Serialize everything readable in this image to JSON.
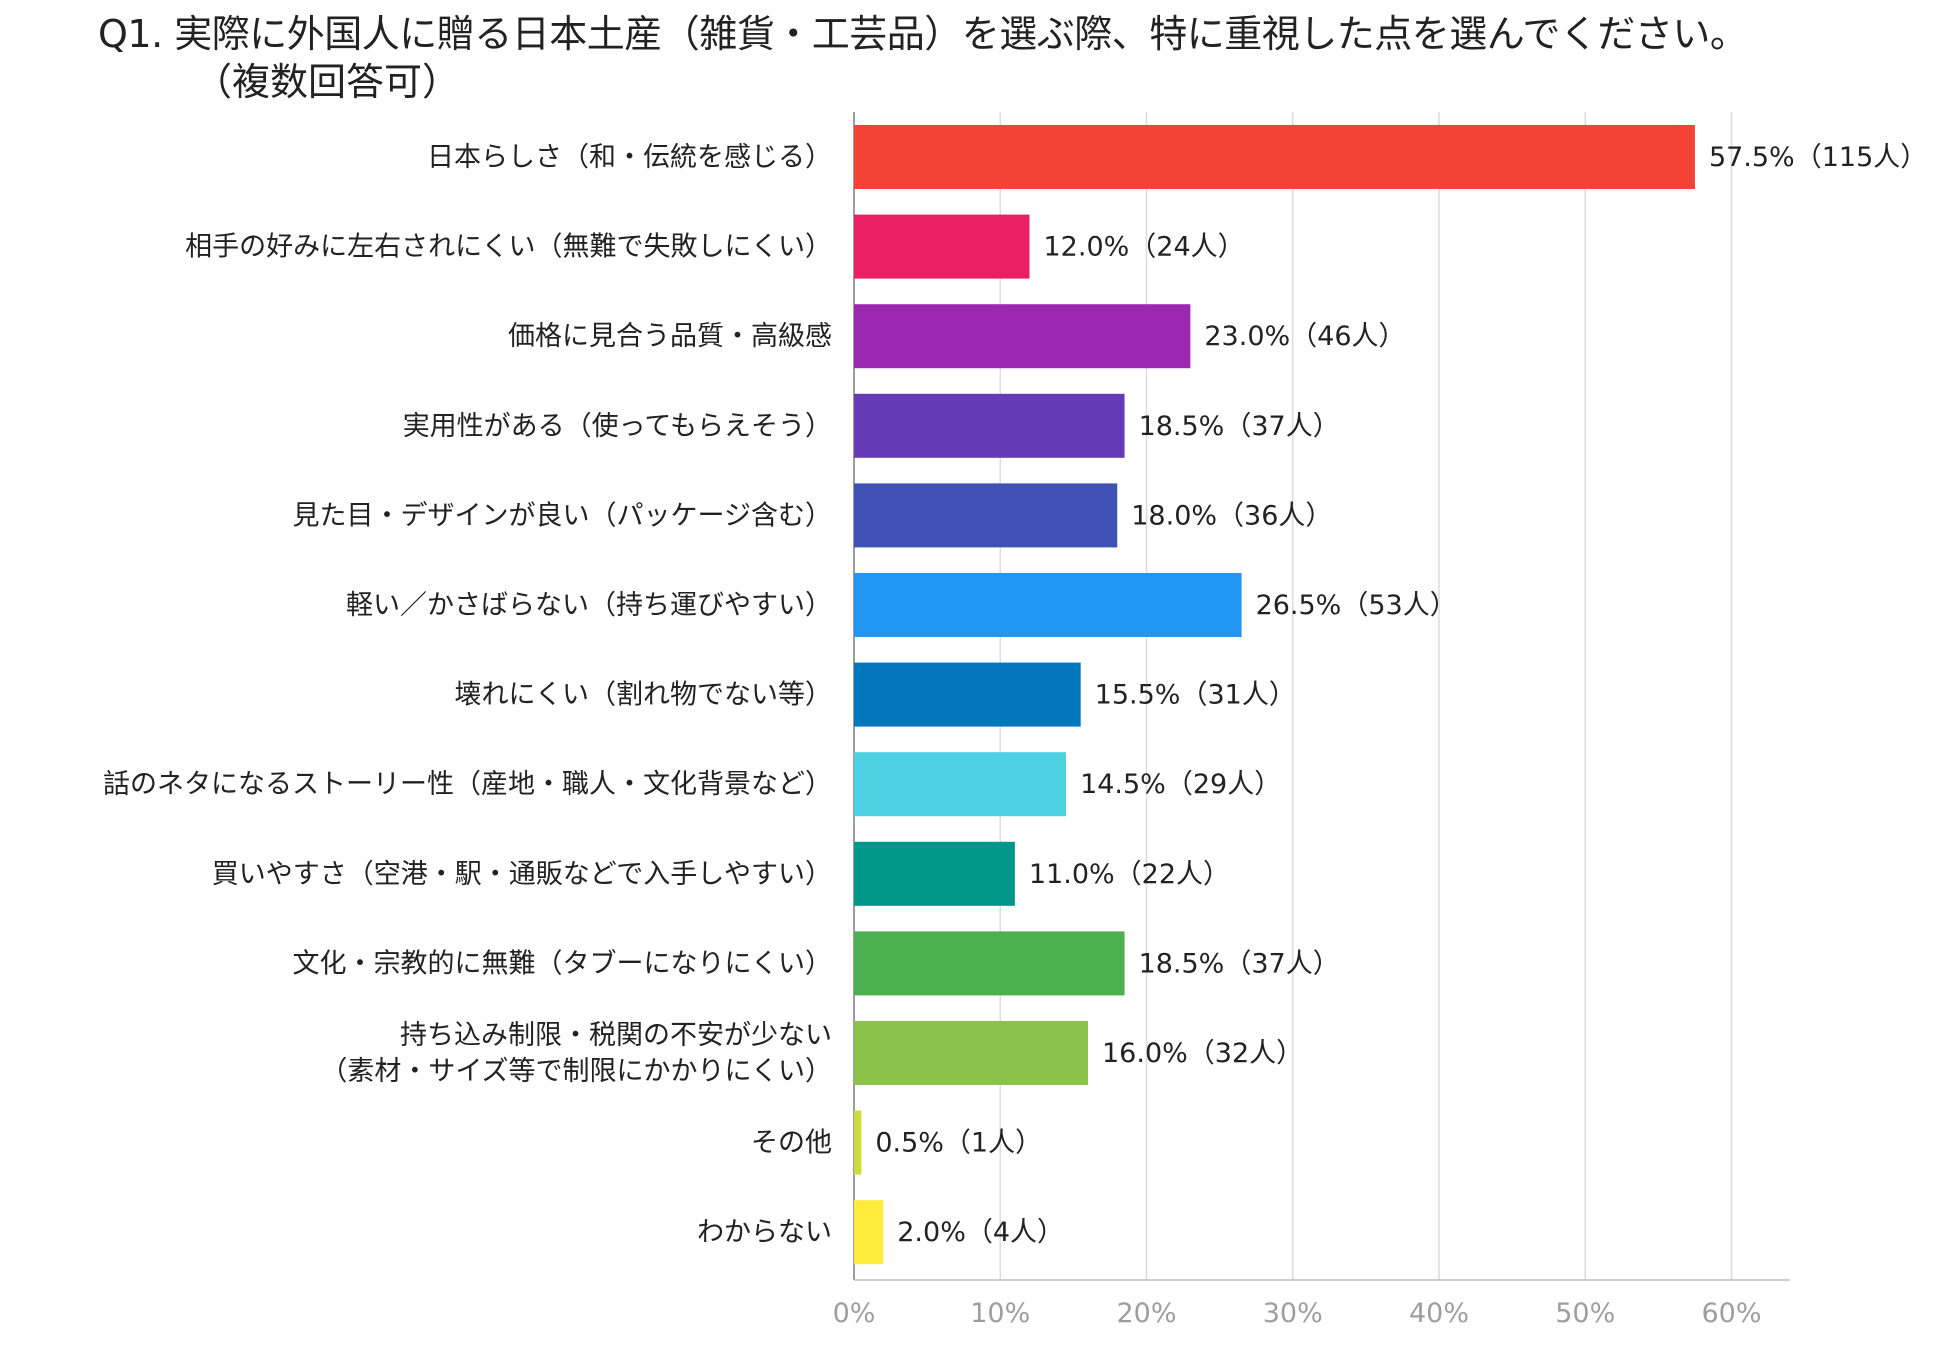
{
  "title": {
    "line1": "Q1. 実際に外国人に贈る日本土産（雑貨・工芸品）を選ぶ際、特に重視した点を選んでください。",
    "line2": "（複数回答可）"
  },
  "chart_data": {
    "type": "bar",
    "orientation": "horizontal",
    "categories": [
      [
        "日本らしさ（和・伝統を感じる）"
      ],
      [
        "相手の好みに左右されにくい（無難で失敗しにくい）"
      ],
      [
        "価格に見合う品質・高級感"
      ],
      [
        "実用性がある（使ってもらえそう）"
      ],
      [
        "見た目・デザインが良い（パッケージ含む）"
      ],
      [
        "軽い／かさばらない（持ち運びやすい）"
      ],
      [
        "壊れにくい（割れ物でない等）"
      ],
      [
        "話のネタになるストーリー性（産地・職人・文化背景など）"
      ],
      [
        "買いやすさ（空港・駅・通販などで入手しやすい）"
      ],
      [
        "文化・宗教的に無難（タブーになりにくい）"
      ],
      [
        "持ち込み制限・税関の不安が少ない",
        "（素材・サイズ等で制限にかかりにくい）"
      ],
      [
        "その他"
      ],
      [
        "わからない"
      ]
    ],
    "values": [
      57.5,
      12.0,
      23.0,
      18.5,
      18.0,
      26.5,
      15.5,
      14.5,
      11.0,
      18.5,
      16.0,
      0.5,
      2.0
    ],
    "value_labels": [
      "57.5%（115人）",
      "12.0%（24人）",
      "23.0%（46人）",
      "18.5%（37人）",
      "18.0%（36人）",
      "26.5%（53人）",
      "15.5%（31人）",
      "14.5%（29人）",
      "11.0%（22人）",
      "18.5%（37人）",
      "16.0%（32人）",
      "0.5%（1人）",
      "2.0%（4人）"
    ],
    "colors": [
      "#f44336",
      "#e91e63",
      "#9c27b0",
      "#673ab7",
      "#3f51b5",
      "#2196f3",
      "#0277bd",
      "#4dd0e1",
      "#009688",
      "#4caf50",
      "#8bc34a",
      "#cddc39",
      "#ffeb3b"
    ],
    "x_ticks": [
      "0%",
      "10%",
      "20%",
      "30%",
      "40%",
      "50%",
      "60%"
    ],
    "xlim": [
      0,
      64
    ],
    "grid": true,
    "legend": "none"
  }
}
